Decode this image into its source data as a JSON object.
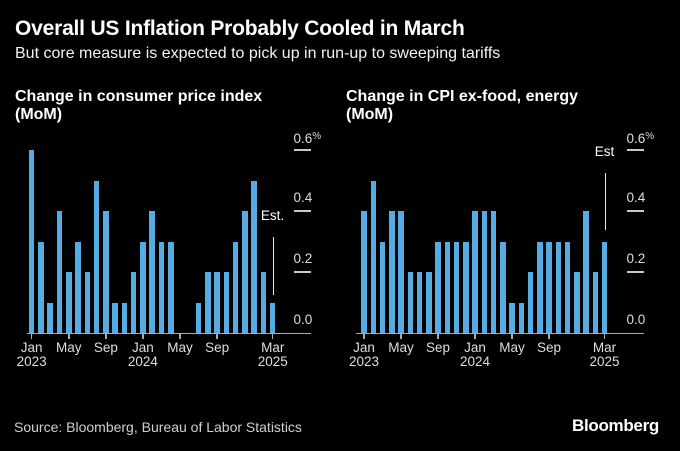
{
  "header": {
    "title": "Overall US Inflation Probably Cooled in March",
    "subtitle": "But core measure is expected to pick up in run-up to sweeping tariffs"
  },
  "chart_data": [
    {
      "type": "bar",
      "title_line1": "Change in consumer price index",
      "title_line2": "(MoM)",
      "unit": "%",
      "ylim": [
        0,
        0.65
      ],
      "grid": false,
      "legend": "none",
      "yticks": [
        {
          "value": 0.0,
          "label": "0.0"
        },
        {
          "value": 0.2,
          "label": "0.2"
        },
        {
          "value": 0.4,
          "label": "0.4"
        },
        {
          "value": 0.6,
          "label": "0.6%"
        }
      ],
      "xticks": [
        {
          "index": 0,
          "label": "Jan",
          "year": "2023"
        },
        {
          "index": 4,
          "label": "May",
          "year": ""
        },
        {
          "index": 8,
          "label": "Sep",
          "year": ""
        },
        {
          "index": 12,
          "label": "Jan",
          "year": "2024"
        },
        {
          "index": 16,
          "label": "May",
          "year": ""
        },
        {
          "index": 20,
          "label": "Sep",
          "year": ""
        },
        {
          "index": 26,
          "label": "Mar",
          "year": "2025"
        }
      ],
      "categories": [
        "Jan 2023",
        "Feb 2023",
        "Mar 2023",
        "Apr 2023",
        "May 2023",
        "Jun 2023",
        "Jul 2023",
        "Aug 2023",
        "Sep 2023",
        "Oct 2023",
        "Nov 2023",
        "Dec 2023",
        "Jan 2024",
        "Feb 2024",
        "Mar 2024",
        "Apr 2024",
        "May 2024",
        "Jun 2024",
        "Jul 2024",
        "Aug 2024",
        "Sep 2024",
        "Oct 2024",
        "Nov 2024",
        "Dec 2024",
        "Jan 2025",
        "Feb 2025",
        "Mar 2025"
      ],
      "values": [
        0.6,
        0.3,
        0.1,
        0.4,
        0.2,
        0.3,
        0.2,
        0.5,
        0.4,
        0.1,
        0.1,
        0.2,
        0.3,
        0.4,
        0.3,
        0.3,
        0.0,
        0.0,
        0.1,
        0.2,
        0.2,
        0.2,
        0.3,
        0.4,
        0.5,
        0.2,
        0.1
      ],
      "estimate": {
        "label": "Est.",
        "month": "Mar 2025",
        "value": 0.1
      }
    },
    {
      "type": "bar",
      "title_line1": "Change in CPI ex-food, energy",
      "title_line2": "(MoM)",
      "unit": "%",
      "ylim": [
        0,
        0.65
      ],
      "grid": false,
      "legend": "none",
      "yticks": [
        {
          "value": 0.0,
          "label": "0.0"
        },
        {
          "value": 0.2,
          "label": "0.2"
        },
        {
          "value": 0.4,
          "label": "0.4"
        },
        {
          "value": 0.6,
          "label": "0.6%"
        }
      ],
      "xticks": [
        {
          "index": 0,
          "label": "Jan",
          "year": "2023"
        },
        {
          "index": 4,
          "label": "May",
          "year": ""
        },
        {
          "index": 8,
          "label": "Sep",
          "year": ""
        },
        {
          "index": 12,
          "label": "Jan",
          "year": "2024"
        },
        {
          "index": 16,
          "label": "May",
          "year": ""
        },
        {
          "index": 20,
          "label": "Sep",
          "year": ""
        },
        {
          "index": 26,
          "label": "Mar",
          "year": "2025"
        }
      ],
      "categories": [
        "Jan 2023",
        "Feb 2023",
        "Mar 2023",
        "Apr 2023",
        "May 2023",
        "Jun 2023",
        "Jul 2023",
        "Aug 2023",
        "Sep 2023",
        "Oct 2023",
        "Nov 2023",
        "Dec 2023",
        "Jan 2024",
        "Feb 2024",
        "Mar 2024",
        "Apr 2024",
        "May 2024",
        "Jun 2024",
        "Jul 2024",
        "Aug 2024",
        "Sep 2024",
        "Oct 2024",
        "Nov 2024",
        "Dec 2024",
        "Jan 2025",
        "Feb 2025",
        "Mar 2025"
      ],
      "values": [
        0.4,
        0.5,
        0.3,
        0.4,
        0.4,
        0.2,
        0.2,
        0.2,
        0.3,
        0.3,
        0.3,
        0.3,
        0.4,
        0.4,
        0.4,
        0.3,
        0.1,
        0.1,
        0.2,
        0.3,
        0.3,
        0.3,
        0.3,
        0.2,
        0.4,
        0.2,
        0.3
      ],
      "estimate": {
        "label": "Est",
        "month": "Mar 2025",
        "value": 0.3
      }
    }
  ],
  "footer": {
    "source": "Source: Bloomberg, Bureau of Labor Statistics",
    "logo": "Bloomberg"
  },
  "colors": {
    "background": "#000000",
    "bar": "#55ACE2",
    "title_text": "#FFFFFF",
    "subtitle_text": "#F2F2F2",
    "axis": "#ABABAB",
    "tick_dash": "#C9C9C9",
    "tick_label": "#DEDEDE",
    "estimate_line": "#E6E6E6",
    "source_text": "#CFCFCF",
    "logo_text": "#FFFFFF"
  }
}
